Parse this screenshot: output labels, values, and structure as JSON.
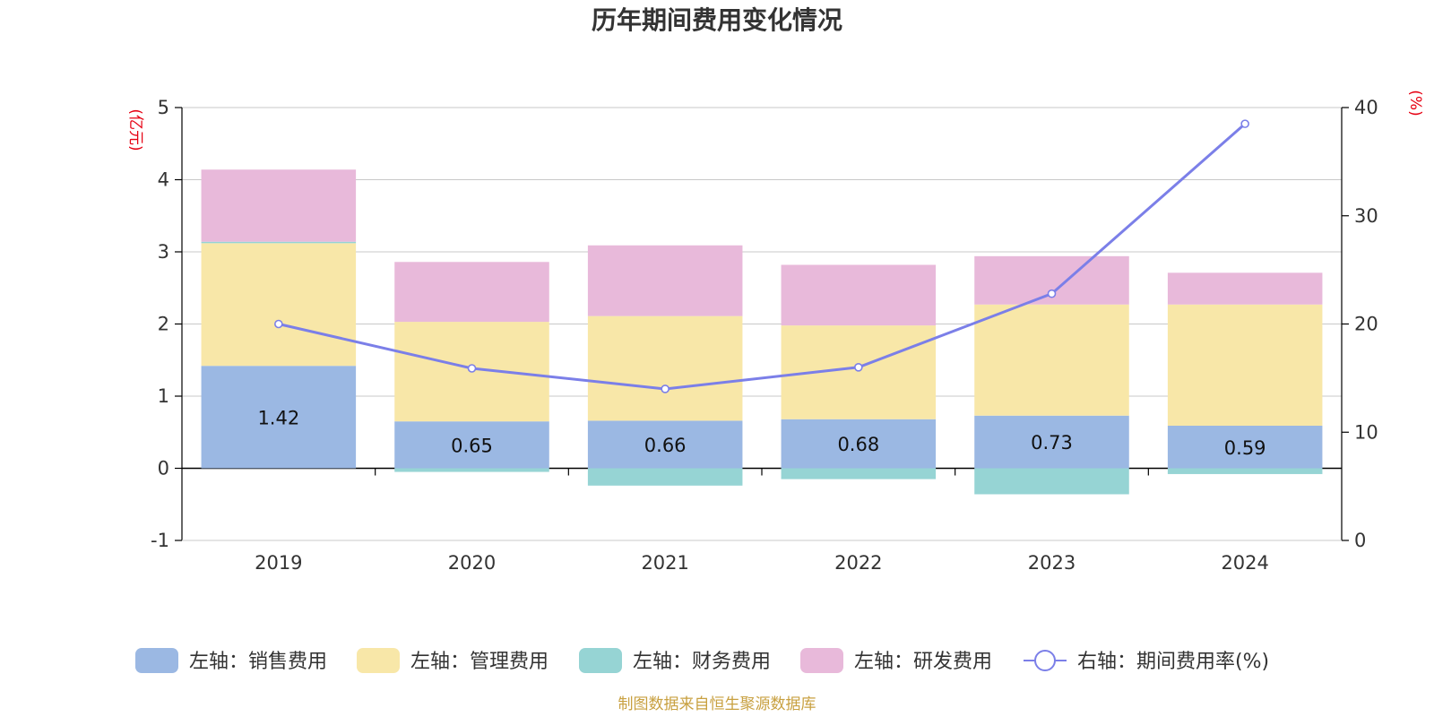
{
  "chart_data": {
    "type": "bar",
    "title": "历年期间费用变化情况",
    "left_unit": "(亿元)",
    "right_unit": "(%)",
    "categories": [
      "2019",
      "2020",
      "2021",
      "2022",
      "2023",
      "2024"
    ],
    "left_axis": {
      "ylim": [
        -1,
        5
      ],
      "ticks": [
        -1,
        0,
        1,
        2,
        3,
        4,
        5
      ]
    },
    "right_axis": {
      "ylim": [
        0,
        40
      ],
      "ticks": [
        0,
        10,
        20,
        30,
        40
      ]
    },
    "grid": true,
    "legend_position": "bottom",
    "series": [
      {
        "name": "左轴：销售费用",
        "kind": "bar",
        "color": "#9bb8e3",
        "values": [
          1.42,
          0.65,
          0.66,
          0.68,
          0.73,
          0.59
        ],
        "labels_shown": true
      },
      {
        "name": "左轴：管理费用",
        "kind": "bar",
        "color": "#f8e7a8",
        "values": [
          1.7,
          1.38,
          1.45,
          1.3,
          1.54,
          1.68
        ]
      },
      {
        "name": "左轴：财务费用",
        "kind": "bar",
        "color": "#96d4d4",
        "values": [
          0.02,
          -0.05,
          -0.24,
          -0.15,
          -0.36,
          -0.08
        ]
      },
      {
        "name": "左轴：研发费用",
        "kind": "bar",
        "color": "#e8b9da",
        "values": [
          1.0,
          0.83,
          0.98,
          0.84,
          0.67,
          0.44
        ]
      },
      {
        "name": "右轴：期间费用率(%)",
        "kind": "line",
        "color": "#7b7fe8",
        "values": [
          20.0,
          15.9,
          14.0,
          16.0,
          22.8,
          38.5
        ]
      }
    ]
  },
  "source": "制图数据来自恒生聚源数据库"
}
